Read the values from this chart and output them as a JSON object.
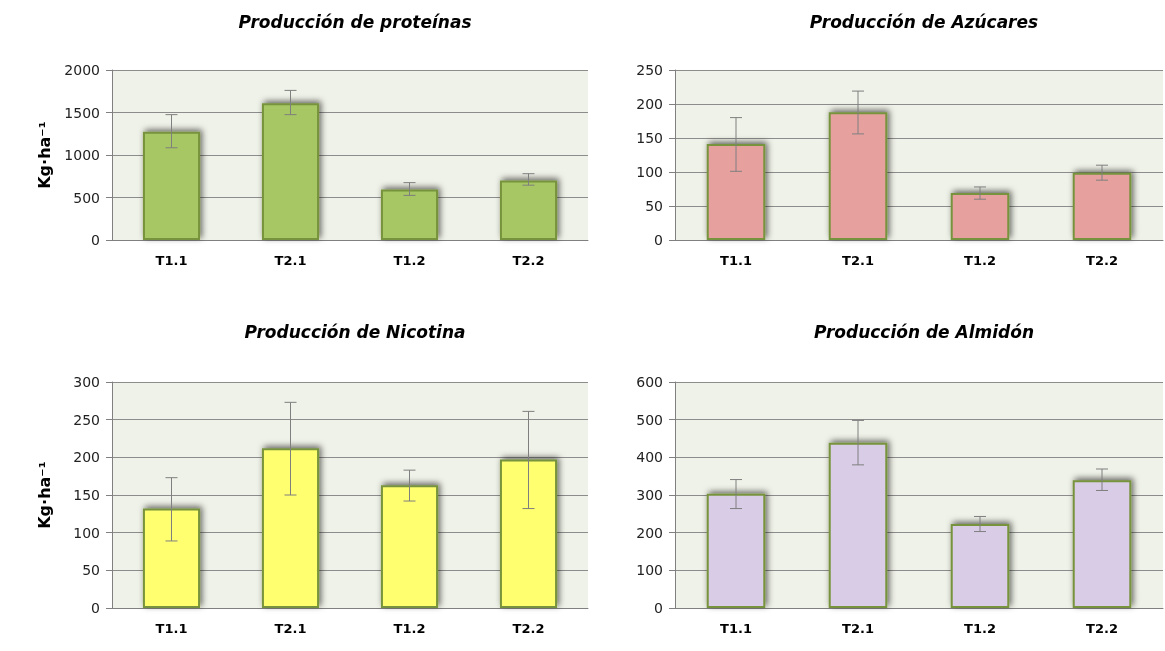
{
  "chart_data": [
    {
      "type": "bar",
      "title": "Producción de proteínas",
      "ylabel": "Kg·ha⁻¹",
      "categories": [
        "T1.1",
        "T2.1",
        "T1.2",
        "T2.2"
      ],
      "values": [
        1275,
        1610,
        595,
        700
      ],
      "errors": [
        [
          1085,
          1475
        ],
        [
          1475,
          1760
        ],
        [
          525,
          675
        ],
        [
          645,
          780
        ]
      ],
      "color": "#a6c764",
      "ylim": [
        0,
        2000
      ],
      "yticks": [
        0,
        500,
        1000,
        1500,
        2000
      ],
      "grid": "y"
    },
    {
      "type": "bar",
      "title": "Producción de Azúcares",
      "categories": [
        "T1.1",
        "T2.1",
        "T1.2",
        "T2.2"
      ],
      "values": [
        141,
        188,
        69,
        99
      ],
      "errors": [
        [
          101,
          180
        ],
        [
          156,
          219
        ],
        [
          60,
          78
        ],
        [
          88,
          110
        ]
      ],
      "color": "#e6a19f",
      "ylim": [
        0,
        250
      ],
      "yticks": [
        0,
        50,
        100,
        150,
        200,
        250
      ],
      "grid": "y"
    },
    {
      "type": "bar",
      "title": "Producción de Nicotina",
      "ylabel": "Kg·ha⁻¹",
      "categories": [
        "T1.1",
        "T2.1",
        "T1.2",
        "T2.2"
      ],
      "values": [
        132,
        212,
        163,
        197
      ],
      "errors": [
        [
          89,
          173
        ],
        [
          150,
          273
        ],
        [
          142,
          183
        ],
        [
          132,
          261
        ]
      ],
      "color": "#ffff6f",
      "ylim": [
        0,
        300
      ],
      "yticks": [
        0,
        50,
        100,
        150,
        200,
        250,
        300
      ],
      "grid": "y"
    },
    {
      "type": "bar",
      "title": "Producción de Almidón",
      "categories": [
        "T1.1",
        "T2.1",
        "T1.2",
        "T2.2"
      ],
      "values": [
        303,
        439,
        223,
        339
      ],
      "errors": [
        [
          264,
          341
        ],
        [
          380,
          498
        ],
        [
          203,
          243
        ],
        [
          312,
          369
        ]
      ],
      "color": "#d9cce7",
      "ylim": [
        0,
        600
      ],
      "yticks": [
        0,
        100,
        200,
        300,
        400,
        500,
        600
      ],
      "grid": "y"
    }
  ]
}
